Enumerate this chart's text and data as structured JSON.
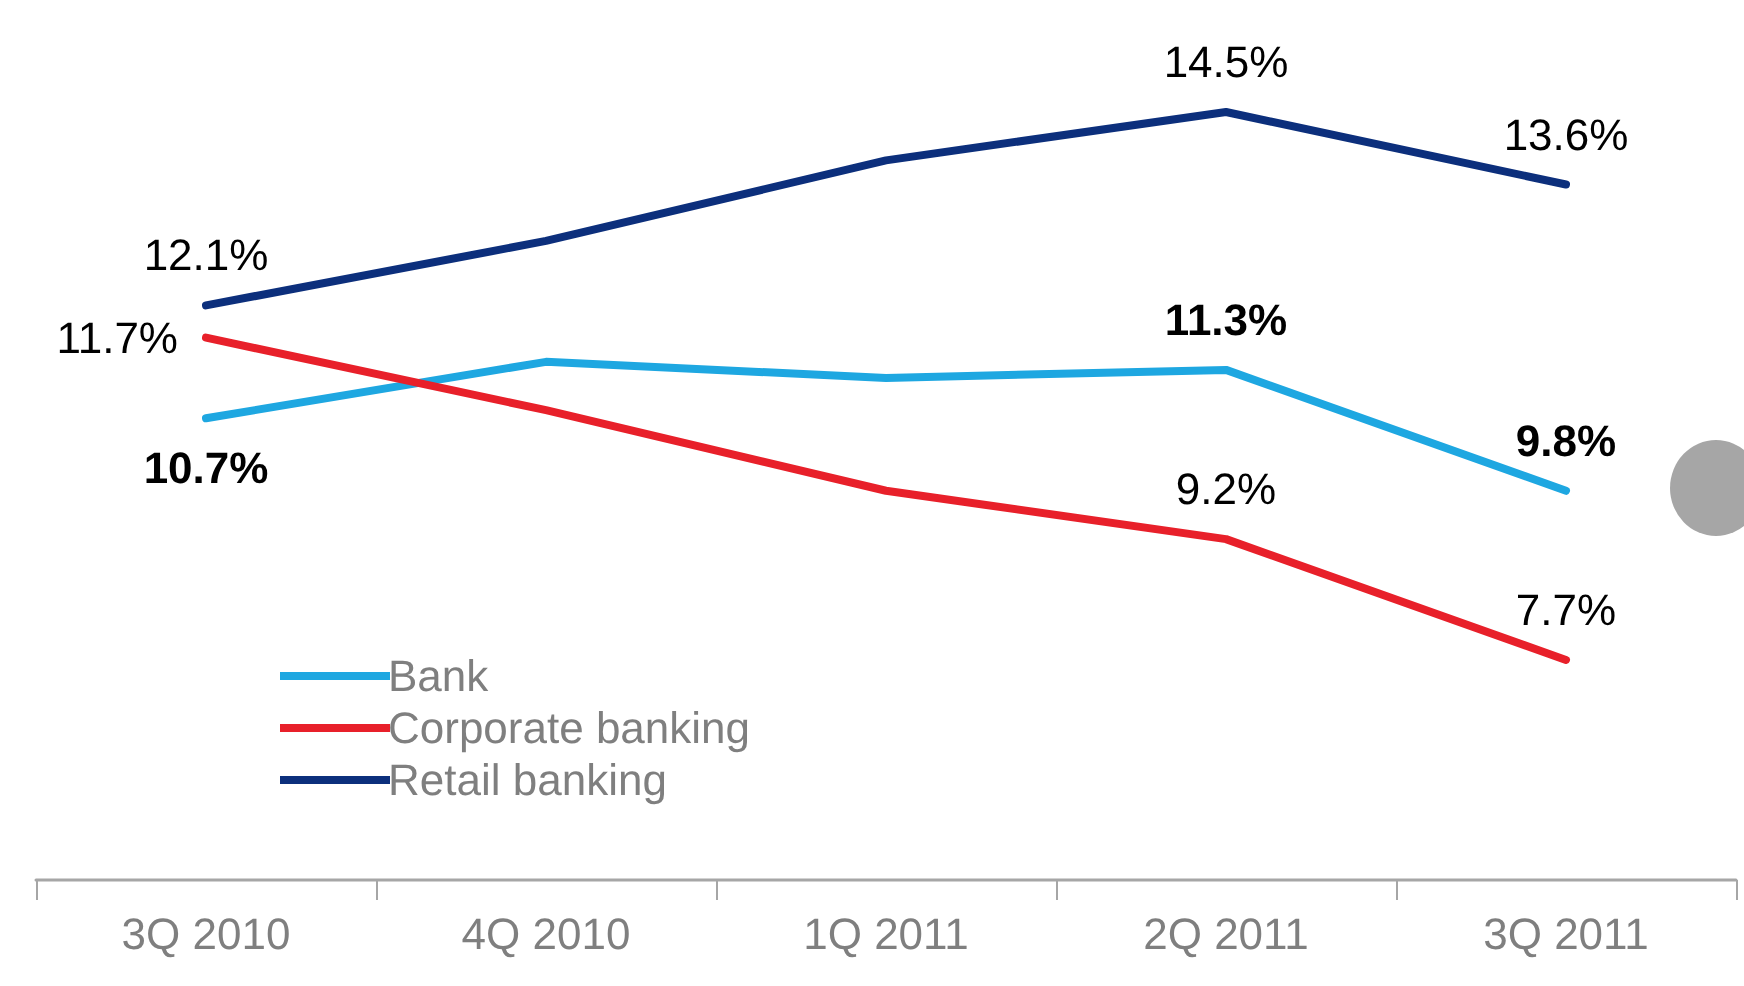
{
  "chart_data": {
    "type": "line",
    "categories": [
      "3Q 2010",
      "4Q 2010",
      "1Q 2011",
      "2Q 2011",
      "3Q 2011"
    ],
    "series": [
      {
        "name": "Bank",
        "color": "#1ea7e1",
        "values": [
          10.7,
          11.4,
          11.2,
          11.3,
          9.8
        ],
        "value_labels": [
          "10.7%",
          null,
          null,
          "11.3%",
          "9.8%"
        ]
      },
      {
        "name": "Corporate banking",
        "color": "#e8202a",
        "values": [
          11.7,
          10.8,
          9.8,
          9.2,
          7.7
        ],
        "value_labels": [
          "11.7%",
          null,
          null,
          "9.2%",
          "7.7%"
        ]
      },
      {
        "name": "Retail banking",
        "color": "#0c2f7c",
        "values": [
          12.1,
          12.9,
          13.9,
          14.5,
          13.6
        ],
        "value_labels": [
          "12.1%",
          null,
          null,
          "14.5%",
          "13.6%"
        ]
      }
    ],
    "legend": "bottom left",
    "marker": "none",
    "line_style": "solid",
    "grid": false
  }
}
